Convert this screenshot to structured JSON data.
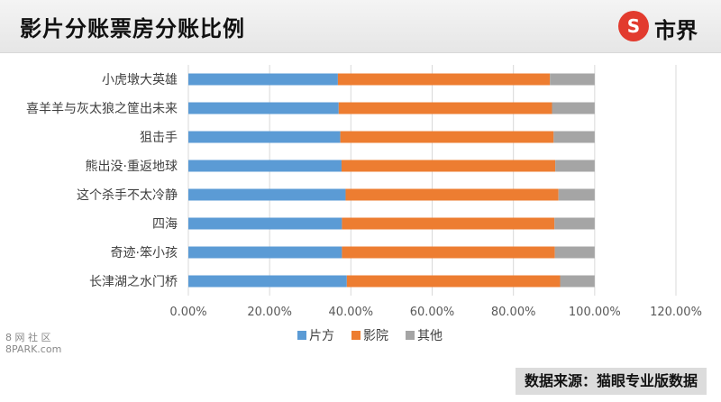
{
  "header": {
    "title": "影片分账票房分账比例"
  },
  "logo": {
    "mark": "S",
    "text": "市界"
  },
  "footer": {
    "source": "数据来源：猫眼专业版数据"
  },
  "watermark_left": {
    "line1": "8 网 社 区",
    "line2": "8PARK.com"
  },
  "colors": {
    "片方": "#5b9bd5",
    "影院": "#ed7d31",
    "其他": "#a5a5a5"
  },
  "chart_data": {
    "type": "bar",
    "orientation": "horizontal",
    "stacked": true,
    "categories": [
      "小虎墩大英雄",
      "喜羊羊与灰太狼之筐出未来",
      "狙击手",
      "熊出没·重返地球",
      "这个杀手不太冷静",
      "四海",
      "奇迹·笨小孩",
      "长津湖之水门桥"
    ],
    "series": [
      {
        "name": "片方",
        "values": [
          36.8,
          37.0,
          37.4,
          37.7,
          38.7,
          37.8,
          37.8,
          39.0
        ]
      },
      {
        "name": "影院",
        "values": [
          52.2,
          52.5,
          52.5,
          52.6,
          52.4,
          52.3,
          52.4,
          52.5
        ]
      },
      {
        "name": "其他",
        "values": [
          11.0,
          10.5,
          10.1,
          9.7,
          8.9,
          9.9,
          9.8,
          8.5
        ]
      }
    ],
    "xlim": [
      0,
      120
    ],
    "xticks": [
      "0.00%",
      "20.00%",
      "40.00%",
      "60.00%",
      "80.00%",
      "100.00%",
      "120.00%"
    ],
    "grid": true,
    "legend": "bottom"
  }
}
